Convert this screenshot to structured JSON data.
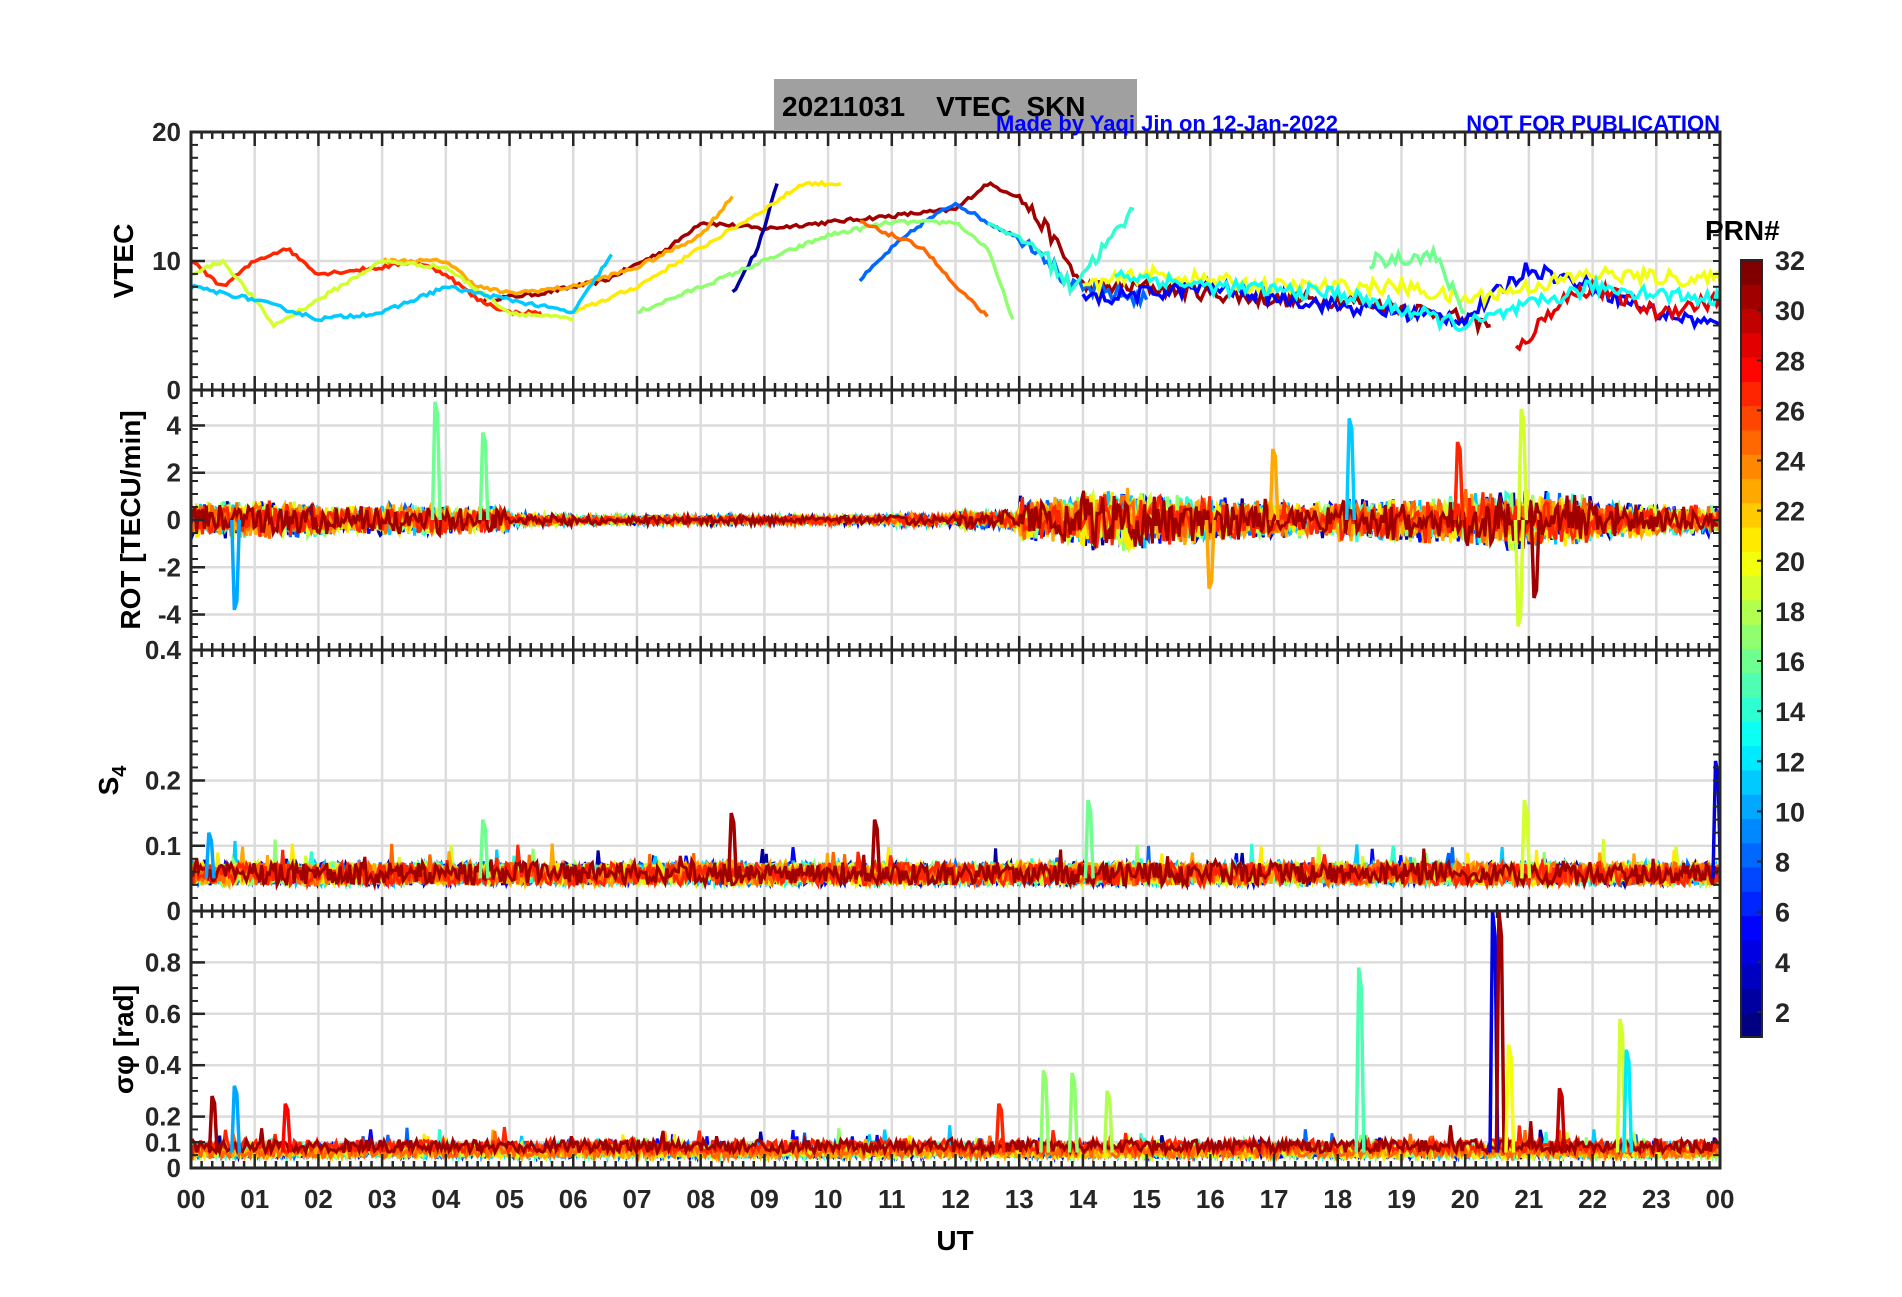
{
  "chart_data": {
    "type": "line",
    "title": "20211031    VTEC  SKN",
    "credit": "Made by Yaqi Jin on 12-Jan-2022",
    "notice": "NOT FOR PUBLICATION",
    "xlabel": "UT",
    "xlim": [
      0,
      24
    ],
    "x_ticks": [
      "00",
      "01",
      "02",
      "03",
      "04",
      "05",
      "06",
      "07",
      "08",
      "09",
      "10",
      "11",
      "12",
      "13",
      "14",
      "15",
      "16",
      "17",
      "18",
      "19",
      "20",
      "21",
      "22",
      "23",
      "00"
    ],
    "grid": true,
    "colorbar": {
      "title": "PRN#",
      "range": [
        1,
        32
      ],
      "colormap": "jet",
      "ticks": [
        2,
        4,
        6,
        8,
        10,
        12,
        14,
        16,
        18,
        20,
        22,
        24,
        26,
        28,
        30,
        32
      ]
    },
    "panels": [
      {
        "id": "vtec",
        "ylabel": "VTEC",
        "ylim": [
          0,
          20
        ],
        "yticks": [
          0,
          10,
          20
        ],
        "arcs": [
          {
            "prn": 31,
            "points": [
              [
                4.6,
                7
              ],
              [
                5.5,
                7.5
              ],
              [
                6.5,
                8.5
              ],
              [
                7.5,
                11
              ],
              [
                8,
                13
              ],
              [
                9,
                12.5
              ],
              [
                10,
                13
              ],
              [
                11,
                13.5
              ],
              [
                12,
                14
              ],
              [
                12.5,
                16
              ],
              [
                13,
                15
              ],
              [
                13.5,
                12
              ],
              [
                14,
                8
              ],
              [
                15,
                8
              ],
              [
                16,
                7.5
              ],
              [
                17,
                7
              ],
              [
                18,
                7
              ],
              [
                19,
                6.5
              ],
              [
                20,
                5.5
              ],
              [
                20.4,
                5
              ]
            ]
          },
          {
            "prn": 2,
            "points": [
              [
                8.5,
                7.5
              ],
              [
                8.9,
                11
              ],
              [
                9.2,
                16
              ]
            ]
          },
          {
            "prn": 21,
            "points": [
              [
                6,
                6
              ],
              [
                7,
                8
              ],
              [
                8,
                11
              ],
              [
                9,
                14
              ],
              [
                9.6,
                16
              ],
              [
                10.2,
                16
              ]
            ]
          },
          {
            "prn": 8,
            "points": [
              [
                10.5,
                8.5
              ],
              [
                11,
                11
              ],
              [
                11.5,
                13
              ],
              [
                12,
                14.5
              ],
              [
                12.5,
                13
              ],
              [
                13.3,
                11
              ],
              [
                13.8,
                8
              ],
              [
                14.5,
                7.5
              ],
              [
                15,
                7
              ]
            ]
          },
          {
            "prn": 17,
            "points": [
              [
                7,
                6
              ],
              [
                8,
                8
              ],
              [
                9,
                10
              ],
              [
                10,
                12
              ],
              [
                11,
                13
              ],
              [
                12,
                13
              ],
              [
                12.5,
                11
              ],
              [
                12.9,
                5.5
              ]
            ]
          },
          {
            "prn": 27,
            "points": [
              [
                0,
                10
              ],
              [
                0.5,
                8
              ],
              [
                1,
                10
              ],
              [
                1.5,
                11
              ],
              [
                2,
                9
              ],
              [
                3,
                9.5
              ],
              [
                3.5,
                10
              ],
              [
                4,
                9
              ],
              [
                4.5,
                7
              ],
              [
                5,
                6
              ],
              [
                5.5,
                6
              ]
            ]
          },
          {
            "prn": 23,
            "points": [
              [
                3,
                10
              ],
              [
                4,
                10
              ],
              [
                4.5,
                8
              ],
              [
                5,
                7.5
              ],
              [
                6,
                8
              ],
              [
                7,
                9.5
              ],
              [
                8,
                12
              ],
              [
                8.5,
                15
              ]
            ]
          },
          {
            "prn": 14,
            "points": [
              [
                12.5,
                13
              ],
              [
                13.3,
                11
              ],
              [
                13.8,
                8
              ],
              [
                14.5,
                12
              ],
              [
                14.8,
                14
              ]
            ]
          },
          {
            "prn": 19,
            "points": [
              [
                0,
                9
              ],
              [
                0.5,
                10
              ],
              [
                1,
                7
              ],
              [
                1.3,
                5
              ],
              [
                2,
                7
              ],
              [
                3,
                10
              ],
              [
                4,
                9.5
              ],
              [
                5,
                6
              ],
              [
                6,
                5.5
              ]
            ]
          },
          {
            "prn": 25,
            "points": [
              [
                10.5,
                13
              ],
              [
                11.5,
                11
              ],
              [
                12,
                8
              ],
              [
                12.5,
                5.7
              ]
            ]
          },
          {
            "prn": 11,
            "points": [
              [
                0,
                8
              ],
              [
                1,
                7
              ],
              [
                2,
                5.5
              ],
              [
                3,
                6
              ],
              [
                4,
                8
              ],
              [
                5,
                7
              ],
              [
                6,
                6
              ],
              [
                6.6,
                10.5
              ]
            ]
          },
          {
            "prn": 5,
            "points": [
              [
                14,
                7
              ],
              [
                16,
                8
              ],
              [
                18,
                6.5
              ],
              [
                20,
                5.5
              ],
              [
                21,
                9.5
              ],
              [
                22,
                8
              ],
              [
                23,
                6
              ],
              [
                24,
                5
              ]
            ]
          },
          {
            "prn": 29,
            "points": [
              [
                20.8,
                3
              ],
              [
                21.5,
                7
              ],
              [
                22,
                8
              ],
              [
                23,
                6
              ],
              [
                24,
                7
              ]
            ]
          },
          {
            "prn": 20,
            "points": [
              [
                14,
                8
              ],
              [
                15,
                9
              ],
              [
                17,
                8
              ],
              [
                19,
                8
              ],
              [
                20,
                7
              ],
              [
                22,
                9
              ],
              [
                24,
                8.5
              ]
            ]
          },
          {
            "prn": 16,
            "points": [
              [
                18.5,
                10
              ],
              [
                19.5,
                10.5
              ],
              [
                20,
                6
              ]
            ]
          },
          {
            "prn": 13,
            "points": [
              [
                14.5,
                9
              ],
              [
                16,
                8
              ],
              [
                18,
                7.5
              ],
              [
                20,
                5
              ],
              [
                22,
                8
              ],
              [
                24,
                7
              ]
            ]
          }
        ]
      },
      {
        "id": "rot",
        "ylabel": "ROT [TECU/min]",
        "ylim": [
          -5.5,
          5.5
        ],
        "yticks": [
          -4,
          -2,
          0,
          2,
          4
        ],
        "hourly_activity": [
          0.6,
          0.6,
          0.5,
          0.5,
          0.45,
          0.2,
          0.15,
          0.15,
          0.15,
          0.15,
          0.15,
          0.2,
          0.3,
          0.8,
          1.0,
          0.8,
          0.7,
          0.6,
          0.7,
          0.8,
          1.0,
          0.9,
          0.6,
          0.5
        ],
        "prns": [
          2,
          5,
          8,
          11,
          14,
          17,
          19,
          21,
          23,
          25,
          27,
          31
        ],
        "spikes": [
          [
            3.85,
            5,
            16
          ],
          [
            4.6,
            3.7,
            16
          ],
          [
            0.7,
            -3.8,
            10
          ],
          [
            18.2,
            4.3,
            11
          ],
          [
            20.9,
            4.7,
            19
          ],
          [
            20.85,
            -4.5,
            19
          ],
          [
            21.1,
            -3.3,
            31
          ],
          [
            16,
            -2.9,
            23
          ],
          [
            17,
            3,
            23
          ],
          [
            19.9,
            3.3,
            27
          ]
        ]
      },
      {
        "id": "s4",
        "ylabel": "S4",
        "ylim": [
          0,
          0.4
        ],
        "yticks": [
          0,
          0.1,
          0.2,
          0.4
        ],
        "baseline": 0.05,
        "prns": [
          2,
          5,
          8,
          11,
          14,
          17,
          19,
          21,
          23,
          25,
          27,
          31
        ],
        "spikes": [
          [
            8.5,
            0.15,
            31
          ],
          [
            10.75,
            0.14,
            31
          ],
          [
            14.1,
            0.17,
            16
          ],
          [
            20.95,
            0.17,
            19
          ],
          [
            23.95,
            0.23,
            4
          ],
          [
            4.6,
            0.14,
            16
          ],
          [
            0.3,
            0.12,
            10
          ]
        ]
      },
      {
        "id": "sigma",
        "ylabel": "σφ [rad]",
        "ylim": [
          0,
          1
        ],
        "yticks": [
          0,
          0.1,
          0.2,
          0.4,
          0.6,
          0.8
        ],
        "baseline": 0.06,
        "prns": [
          2,
          5,
          8,
          11,
          14,
          17,
          19,
          21,
          23,
          25,
          27,
          31
        ],
        "spikes": [
          [
            18.35,
            0.78,
            15
          ],
          [
            20.45,
            1.0,
            4
          ],
          [
            20.55,
            1.0,
            31
          ],
          [
            20.7,
            0.48,
            20
          ],
          [
            22.45,
            0.58,
            19
          ],
          [
            22.55,
            0.46,
            12
          ],
          [
            13.4,
            0.38,
            17
          ],
          [
            13.85,
            0.37,
            17
          ],
          [
            14.4,
            0.3,
            18
          ],
          [
            12.7,
            0.25,
            27
          ],
          [
            0.7,
            0.32,
            10
          ],
          [
            1.5,
            0.25,
            28
          ],
          [
            0.35,
            0.28,
            31
          ],
          [
            21.5,
            0.31,
            30
          ]
        ]
      }
    ]
  }
}
